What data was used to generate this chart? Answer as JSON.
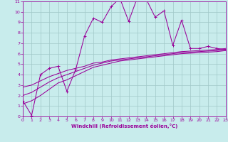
{
  "xlabel": "Windchill (Refroidissement éolien,°C)",
  "bg_color": "#c8ecec",
  "grid_color": "#a0c8c8",
  "line_color": "#990099",
  "xlim": [
    0,
    23
  ],
  "ylim": [
    0,
    11
  ],
  "xticks": [
    0,
    1,
    2,
    3,
    4,
    5,
    6,
    7,
    8,
    9,
    10,
    11,
    12,
    13,
    14,
    15,
    16,
    17,
    18,
    19,
    20,
    21,
    22,
    23
  ],
  "yticks": [
    0,
    1,
    2,
    3,
    4,
    5,
    6,
    7,
    8,
    9,
    10,
    11
  ],
  "line1_x": [
    0,
    1,
    2,
    3,
    4,
    5,
    6,
    7,
    8,
    9,
    10,
    11,
    12,
    13,
    14,
    15,
    16,
    17,
    18,
    19,
    20,
    21,
    22,
    23
  ],
  "line1_y": [
    1.5,
    0.1,
    4.0,
    4.6,
    4.8,
    2.4,
    4.5,
    7.7,
    9.4,
    9.0,
    10.5,
    11.3,
    9.1,
    11.4,
    11.2,
    9.5,
    10.1,
    6.8,
    9.2,
    6.5,
    6.5,
    6.7,
    6.5,
    6.4
  ],
  "line2_x": [
    0,
    1,
    2,
    3,
    4,
    5,
    6,
    7,
    8,
    9,
    10,
    11,
    12,
    13,
    14,
    15,
    16,
    17,
    18,
    19,
    20,
    21,
    22,
    23
  ],
  "line2_y": [
    1.2,
    1.5,
    2.0,
    2.6,
    3.2,
    3.5,
    3.9,
    4.3,
    4.7,
    4.9,
    5.1,
    5.3,
    5.4,
    5.5,
    5.6,
    5.7,
    5.8,
    5.9,
    6.0,
    6.05,
    6.1,
    6.15,
    6.2,
    6.3
  ],
  "line3_x": [
    0,
    1,
    2,
    3,
    4,
    5,
    6,
    7,
    8,
    9,
    10,
    11,
    12,
    13,
    14,
    15,
    16,
    17,
    18,
    19,
    20,
    21,
    22,
    23
  ],
  "line3_y": [
    2.0,
    2.3,
    2.8,
    3.3,
    3.7,
    4.0,
    4.3,
    4.6,
    4.9,
    5.1,
    5.3,
    5.4,
    5.5,
    5.6,
    5.7,
    5.8,
    5.9,
    6.0,
    6.1,
    6.15,
    6.2,
    6.25,
    6.3,
    6.4
  ],
  "line4_x": [
    0,
    1,
    2,
    3,
    4,
    5,
    6,
    7,
    8,
    9,
    10,
    11,
    12,
    13,
    14,
    15,
    16,
    17,
    18,
    19,
    20,
    21,
    22,
    23
  ],
  "line4_y": [
    2.8,
    3.0,
    3.4,
    3.8,
    4.1,
    4.4,
    4.6,
    4.8,
    5.1,
    5.2,
    5.4,
    5.5,
    5.6,
    5.7,
    5.8,
    5.9,
    6.0,
    6.1,
    6.2,
    6.25,
    6.3,
    6.35,
    6.4,
    6.5
  ]
}
